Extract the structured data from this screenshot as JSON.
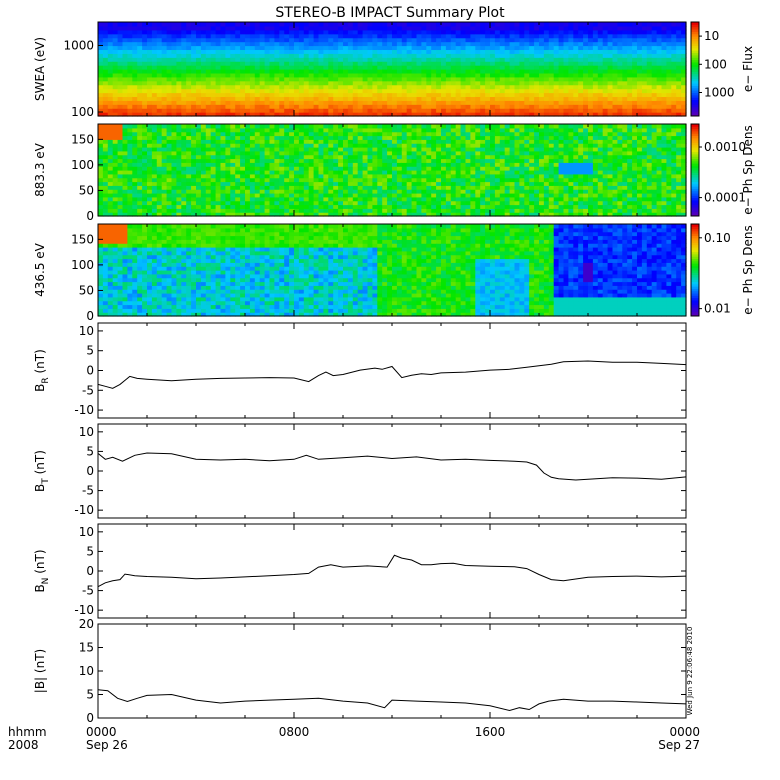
{
  "title": "STEREO-B IMPACT Summary Plot",
  "timestamp": "Wed Jun  9 22:06:48 2010",
  "x_axis": {
    "row1": [
      "0000",
      "0800",
      "1600",
      "0000"
    ],
    "row2": [
      "Sep 26",
      "",
      "",
      "Sep 27"
    ],
    "left_label_1": "hhmm",
    "left_label_2": "2008"
  },
  "colors": {
    "line": "#000000",
    "frame": "#000000"
  },
  "chart_data": [
    {
      "type": "heatmap",
      "panel": "swea",
      "ylabel": "SWEA (eV)",
      "yscale": "log",
      "ylim": [
        100,
        2000
      ],
      "yticks": [
        "1000",
        "100"
      ],
      "colorbar_label": "e− Flux",
      "colorbar_ticks": [
        "1000",
        "100",
        "10"
      ],
      "colorbar_range": [
        3,
        3000
      ],
      "colorbar_scale": "log"
    },
    {
      "type": "heatmap",
      "panel": "pad_883",
      "ylabel": "883.3 eV",
      "ylim": [
        0,
        180
      ],
      "yticks": [
        "150",
        "100",
        "50",
        "0"
      ],
      "colorbar_label": "e− Ph Sp Dens",
      "colorbar_ticks": [
        "0.0010",
        "0.0001"
      ],
      "colorbar_range": [
        3e-05,
        0.003
      ],
      "colorbar_scale": "log"
    },
    {
      "type": "heatmap",
      "panel": "pad_436",
      "ylabel": "436.5 eV",
      "ylim": [
        0,
        180
      ],
      "yticks": [
        "150",
        "100",
        "50",
        "0"
      ],
      "colorbar_label": "e− Ph Sp Dens",
      "colorbar_ticks": [
        "0.10",
        "0.01"
      ],
      "colorbar_range": [
        0.01,
        0.15
      ],
      "colorbar_scale": "log"
    },
    {
      "type": "line",
      "panel": "br",
      "ylabel_main": "B",
      "ylabel_sub": "R",
      "ylabel_unit": " (nT)",
      "ylim": [
        -12,
        12
      ],
      "yticks": [
        "10",
        "5",
        "0",
        "-5",
        "-10"
      ],
      "x": [
        0,
        0.3,
        0.6,
        0.9,
        1.3,
        1.6,
        2,
        3,
        4,
        5,
        6,
        7,
        8,
        8.6,
        9.0,
        9.3,
        9.6,
        10,
        10.7,
        11.3,
        11.6,
        12,
        12.4,
        12.8,
        13.2,
        13.6,
        14,
        15,
        16,
        16.8,
        17.5,
        18,
        18.5,
        19,
        20,
        21,
        22,
        23,
        24
      ],
      "y": [
        -3.5,
        -4,
        -4.5,
        -3.5,
        -1.5,
        -2.0,
        -2.2,
        -2.6,
        -2.2,
        -2.0,
        -1.9,
        -1.8,
        -1.9,
        -2.8,
        -1.3,
        -0.4,
        -1.3,
        -1.0,
        0.1,
        0.6,
        0.3,
        1.0,
        -1.8,
        -1.2,
        -0.8,
        -1.0,
        -0.6,
        -0.4,
        0.1,
        0.3,
        0.8,
        1.2,
        1.6,
        2.2,
        2.4,
        2.1,
        2.1,
        1.8,
        1.5
      ]
    },
    {
      "type": "line",
      "panel": "bt",
      "ylabel_main": "B",
      "ylabel_sub": "T",
      "ylabel_unit": " (nT)",
      "ylim": [
        -12,
        12
      ],
      "yticks": [
        "10",
        "5",
        "0",
        "-5",
        "-10"
      ],
      "x": [
        0,
        0.3,
        0.6,
        1.0,
        1.5,
        2,
        3,
        4,
        5,
        6,
        7,
        8,
        8.5,
        9,
        10,
        11,
        12,
        13,
        14,
        15,
        16,
        17,
        17.5,
        17.9,
        18.2,
        18.5,
        18.8,
        19.5,
        20,
        21,
        22,
        23,
        24
      ],
      "y": [
        4.5,
        3,
        3.5,
        2.5,
        4.0,
        4.6,
        4.4,
        3.0,
        2.8,
        3.0,
        2.6,
        3.0,
        4.0,
        3.0,
        3.4,
        3.8,
        3.2,
        3.6,
        2.8,
        3.0,
        2.7,
        2.5,
        2.3,
        1.5,
        -0.5,
        -1.6,
        -2.0,
        -2.3,
        -2.1,
        -1.7,
        -1.8,
        -2.1,
        -1.5
      ]
    },
    {
      "type": "line",
      "panel": "bn",
      "ylabel_main": "B",
      "ylabel_sub": "N",
      "ylabel_unit": " (nT)",
      "ylim": [
        -12,
        12
      ],
      "yticks": [
        "10",
        "5",
        "0",
        "-5",
        "-10"
      ],
      "x": [
        0,
        0.3,
        0.6,
        0.9,
        1.1,
        1.5,
        2,
        3,
        4,
        5,
        6,
        7,
        8,
        8.6,
        9.0,
        9.5,
        10,
        11,
        11.8,
        12.1,
        12.4,
        12.8,
        13.2,
        13.6,
        14,
        14.5,
        15,
        16,
        17,
        17.5,
        18,
        18.5,
        19,
        20,
        21,
        22,
        23,
        24
      ],
      "y": [
        -4,
        -3,
        -2.5,
        -2.2,
        -0.8,
        -1.2,
        -1.4,
        -1.6,
        -2.0,
        -1.8,
        -1.5,
        -1.2,
        -0.9,
        -0.6,
        1.0,
        1.6,
        1.0,
        1.3,
        1.0,
        4.0,
        3.3,
        2.8,
        1.6,
        1.6,
        1.9,
        2.0,
        1.4,
        1.2,
        1.1,
        0.6,
        -0.9,
        -2.2,
        -2.5,
        -1.6,
        -1.4,
        -1.3,
        -1.5,
        -1.3
      ]
    },
    {
      "type": "line",
      "panel": "bmag",
      "ylabel_main": "|B| (nT)",
      "ylim": [
        0,
        20
      ],
      "yticks": [
        "20",
        "15",
        "10",
        "5",
        "0"
      ],
      "x": [
        0,
        0.4,
        0.8,
        1.2,
        1.6,
        2,
        3,
        4,
        5,
        6,
        7,
        8,
        9,
        10,
        11,
        11.7,
        12,
        13,
        14,
        15,
        16,
        16.8,
        17.2,
        17.6,
        18,
        18.4,
        19,
        20,
        21,
        22,
        23,
        24
      ],
      "y": [
        6.0,
        5.8,
        4.2,
        3.5,
        4.2,
        4.8,
        5.0,
        3.8,
        3.2,
        3.6,
        3.8,
        4.0,
        4.2,
        3.6,
        3.2,
        2.2,
        3.8,
        3.6,
        3.4,
        3.2,
        2.6,
        1.6,
        2.2,
        1.8,
        3.0,
        3.6,
        4.0,
        3.6,
        3.6,
        3.4,
        3.2,
        3.0
      ]
    }
  ]
}
